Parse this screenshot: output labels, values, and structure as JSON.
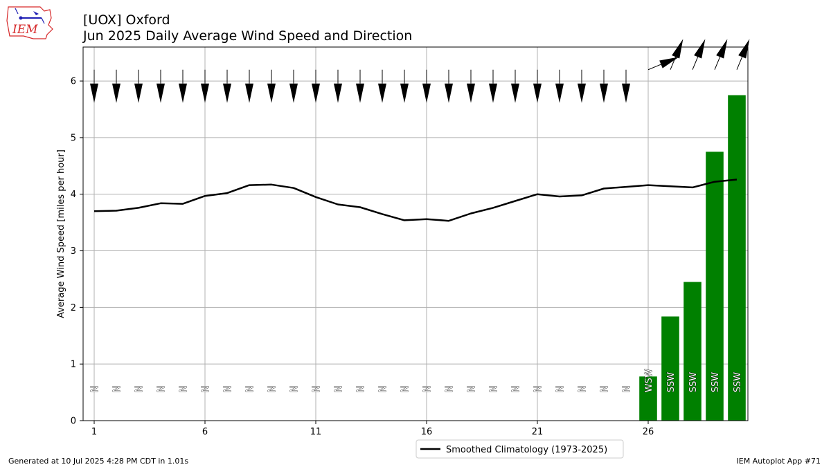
{
  "header": {
    "title": "[UOX] Oxford",
    "subtitle": "Jun 2025 Daily Average Wind Speed and Direction"
  },
  "logo": {
    "text": "IEM",
    "name": "iem-logo"
  },
  "footer": {
    "generated": "Generated at 10 Jul 2025 4:28 PM CDT in 1.01s",
    "app": "IEM Autoplot App #71"
  },
  "colors": {
    "bar": "#008000",
    "climo": "#000000",
    "grid": "#b0b0b0",
    "logo_red": "#d62728",
    "logo_blue": "#1f1fb4"
  },
  "chart_data": {
    "type": "bar",
    "title": "Jun 2025 Daily Average Wind Speed and Direction",
    "ylabel": "Average Wind Speed [miles per hour]",
    "xlabel": "",
    "xlim": [
      0.5,
      30.5
    ],
    "ylim": [
      0,
      6.6
    ],
    "xticks": [
      1,
      6,
      11,
      16,
      21,
      26
    ],
    "yticks": [
      0,
      1,
      2,
      3,
      4,
      5,
      6
    ],
    "grid": true,
    "legend": {
      "placement": "bottom-center",
      "entries": [
        "Smoothed Climatology (1973-2025)"
      ]
    },
    "days": [
      1,
      2,
      3,
      4,
      5,
      6,
      7,
      8,
      9,
      10,
      11,
      12,
      13,
      14,
      15,
      16,
      17,
      18,
      19,
      20,
      21,
      22,
      23,
      24,
      25,
      26,
      27,
      28,
      29,
      30
    ],
    "speed": [
      0,
      0,
      0,
      0,
      0,
      0,
      0,
      0,
      0,
      0,
      0,
      0,
      0,
      0,
      0,
      0,
      0,
      0,
      0,
      0,
      0,
      0,
      0,
      0,
      0,
      0.78,
      1.84,
      2.45,
      4.75,
      5.75
    ],
    "direction_labels": [
      "N",
      "N",
      "N",
      "N",
      "N",
      "N",
      "N",
      "N",
      "N",
      "N",
      "N",
      "N",
      "N",
      "N",
      "N",
      "N",
      "N",
      "N",
      "N",
      "N",
      "N",
      "N",
      "N",
      "N",
      "N",
      "WSW",
      "SSW",
      "SSW",
      "SSW",
      "SSW"
    ],
    "direction_deg": [
      0,
      0,
      0,
      0,
      0,
      0,
      0,
      0,
      0,
      0,
      0,
      0,
      0,
      0,
      0,
      0,
      0,
      0,
      0,
      0,
      0,
      0,
      0,
      0,
      0,
      247.5,
      202.5,
      202.5,
      202.5,
      202.5
    ],
    "series": [
      {
        "name": "Smoothed Climatology (1973-2025)",
        "values": [
          3.7,
          3.71,
          3.76,
          3.84,
          3.83,
          3.97,
          4.02,
          4.16,
          4.17,
          4.11,
          3.95,
          3.82,
          3.77,
          3.65,
          3.54,
          3.56,
          3.53,
          3.66,
          3.76,
          3.88,
          4.0,
          3.96,
          3.98,
          4.1,
          4.13,
          4.16,
          4.14,
          4.12,
          4.22,
          4.26
        ]
      }
    ]
  }
}
